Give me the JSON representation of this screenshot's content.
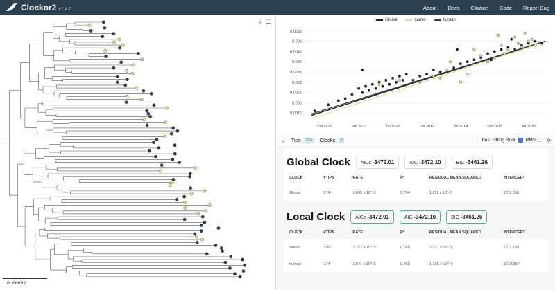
{
  "app": {
    "name": "Clockor2",
    "version": "v1.4.0"
  },
  "nav": [
    "About",
    "Docs",
    "Citation",
    "Code",
    "Report Bug"
  ],
  "tree": {
    "scale_label": "0.00052",
    "tools": [
      "download-icon",
      "settings-sliders-icon"
    ]
  },
  "chart_data": {
    "type": "scatter",
    "title": "",
    "xlabel": "",
    "ylabel": "",
    "legend": {
      "placement": "top-center",
      "entries": [
        "Global",
        "camel",
        "human"
      ]
    },
    "colors": {
      "Global": "#222222",
      "camel": "#e3e08a",
      "human": "#2f3f4f"
    },
    "x_ticks": [
      "Jul 2012",
      "Jan 2013",
      "Jul 2013",
      "Jan 2014",
      "Jul 2014",
      "Jan 2015",
      "Jul 2015"
    ],
    "x_tick_values": [
      2012.5,
      2013.0,
      2013.5,
      2014.0,
      2014.5,
      2015.0,
      2015.5
    ],
    "y_ticks": [
      "0.0015",
      "0.002",
      "0.0025",
      "0.003",
      "0.0035",
      "0.004",
      "0.0045",
      "0.005",
      "0.0055"
    ],
    "y_tick_values": [
      0.0015,
      0.002,
      0.0025,
      0.003,
      0.0035,
      0.004,
      0.0045,
      0.005,
      0.0055
    ],
    "xlim": [
      2012.2,
      2015.8
    ],
    "ylim": [
      0.0012,
      0.0058
    ],
    "lines": [
      {
        "name": "Global",
        "x": [
          2012.3,
          2015.75
        ],
        "y": [
          0.00138,
          0.005
        ]
      },
      {
        "name": "camel",
        "x": [
          2012.3,
          2015.75
        ],
        "y": [
          0.00122,
          0.00497
        ]
      },
      {
        "name": "human",
        "x": [
          2012.3,
          2015.75
        ],
        "y": [
          0.00145,
          0.00501
        ]
      }
    ],
    "series": [
      {
        "name": "human",
        "points": [
          [
            2012.35,
            0.0016
          ],
          [
            2012.55,
            0.0019
          ],
          [
            2012.7,
            0.0021
          ],
          [
            2012.8,
            0.0022
          ],
          [
            2012.9,
            0.0024
          ],
          [
            2013.0,
            0.0027
          ],
          [
            2013.05,
            0.0025
          ],
          [
            2013.1,
            0.0028
          ],
          [
            2013.15,
            0.0026
          ],
          [
            2013.2,
            0.0029
          ],
          [
            2013.25,
            0.0027
          ],
          [
            2013.3,
            0.003
          ],
          [
            2013.35,
            0.0028
          ],
          [
            2013.4,
            0.0031
          ],
          [
            2013.45,
            0.0029
          ],
          [
            2013.5,
            0.0032
          ],
          [
            2013.55,
            0.003
          ],
          [
            2013.6,
            0.0033
          ],
          [
            2013.65,
            0.0031
          ],
          [
            2013.7,
            0.0034
          ],
          [
            2013.8,
            0.0031
          ],
          [
            2013.9,
            0.0033
          ],
          [
            2014.0,
            0.0034
          ],
          [
            2014.1,
            0.0036
          ],
          [
            2014.2,
            0.0035
          ],
          [
            2014.4,
            0.0037
          ],
          [
            2014.5,
            0.0039
          ],
          [
            2014.6,
            0.004
          ],
          [
            2014.7,
            0.0041
          ],
          [
            2014.8,
            0.0042
          ],
          [
            2014.9,
            0.0044
          ],
          [
            2015.0,
            0.0045
          ],
          [
            2015.1,
            0.0046
          ],
          [
            2015.2,
            0.0047
          ],
          [
            2015.3,
            0.0046
          ],
          [
            2015.4,
            0.0048
          ],
          [
            2015.5,
            0.0049
          ],
          [
            2015.6,
            0.005
          ],
          [
            2015.7,
            0.0049
          ],
          [
            2013.05,
            0.0036
          ],
          [
            2014.45,
            0.0046
          ],
          [
            2014.95,
            0.0041
          ],
          [
            2015.25,
            0.0051
          ]
        ]
      },
      {
        "name": "camel",
        "points": [
          [
            2013.3,
            0.0029
          ],
          [
            2013.6,
            0.0031
          ],
          [
            2013.9,
            0.003
          ],
          [
            2014.1,
            0.0033
          ],
          [
            2014.2,
            0.0032
          ],
          [
            2014.3,
            0.0036
          ],
          [
            2014.5,
            0.003
          ],
          [
            2014.6,
            0.0034
          ],
          [
            2014.7,
            0.0046
          ],
          [
            2014.8,
            0.0043
          ],
          [
            2014.9,
            0.004
          ],
          [
            2015.0,
            0.0042
          ],
          [
            2015.1,
            0.0048
          ],
          [
            2015.15,
            0.0044
          ],
          [
            2015.2,
            0.0046
          ],
          [
            2015.3,
            0.0052
          ],
          [
            2015.35,
            0.0049
          ],
          [
            2015.4,
            0.0047
          ],
          [
            2015.45,
            0.0054
          ],
          [
            2015.5,
            0.005
          ],
          [
            2015.55,
            0.0051
          ],
          [
            2015.6,
            0.0048
          ],
          [
            2014.35,
            0.004
          ],
          [
            2015.05,
            0.0053
          ]
        ]
      }
    ]
  },
  "panel": {
    "tabs": [
      {
        "label": "Tips",
        "count": "274"
      },
      {
        "label": "Clocks",
        "count": "2"
      }
    ],
    "best_fitting_root": "Best Fitting Root",
    "metric": "RMS",
    "global": {
      "title": "Global Clock",
      "aicc": {
        "label": "AICc",
        "value": "-3472.01"
      },
      "aic": {
        "label": "AIC",
        "value": "-3472.10"
      },
      "bic": {
        "label": "BIC",
        "value": "-3461.26"
      },
      "columns": [
        "CLOCK",
        "#TIPS",
        "RATE",
        "R²",
        "RESIDUAL MEAN SQUARED",
        "INTERCEPT"
      ],
      "rows": [
        [
          "Global",
          "274",
          "1.095 x 10^-3",
          "0.794",
          "1.811 x 10^-7",
          "2011.090"
        ]
      ]
    },
    "local": {
      "title": "Local Clock",
      "aicc": {
        "label": "AICc",
        "value": "-3472.01"
      },
      "aic": {
        "label": "AIC",
        "value": "-3472.10"
      },
      "bic": {
        "label": "BIC",
        "value": "-3461.26"
      },
      "columns": [
        "CLOCK",
        "#TIPS",
        "RATE",
        "R²",
        "RESIDUAL MEAN SQUARED",
        "INTERCEPT"
      ],
      "rows": [
        [
          "camel",
          "100",
          "1.327 x 10^-3",
          "0.568",
          "2.571 x 10^-7",
          "2011.760"
        ],
        [
          "human",
          "174",
          "1.071 x 10^-3",
          "0.868",
          "1.326 x 10^-7",
          "2010.997"
        ]
      ]
    }
  }
}
